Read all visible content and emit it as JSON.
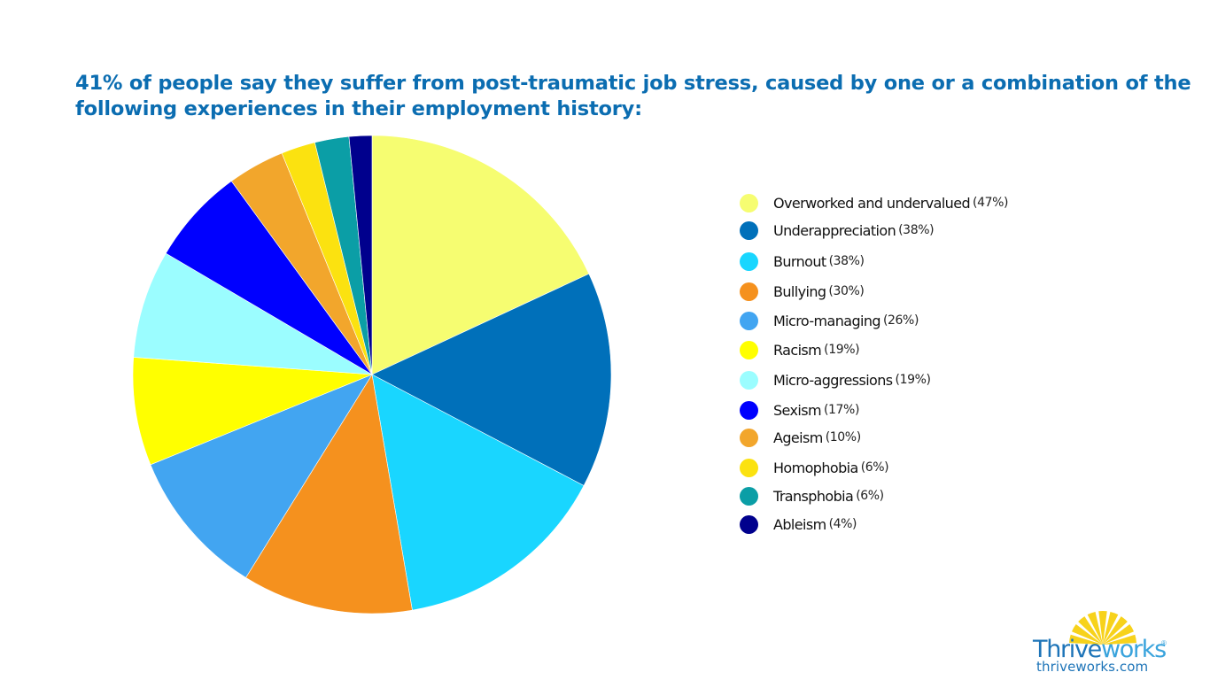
{
  "title": {
    "line1": "41% of people say they suffer from post-traumatic job stress, caused by one or a combination of the",
    "line2": "following experiences in their employment history:"
  },
  "logo": {
    "brand_part1": "Thrive",
    "brand_part2": "works",
    "registered": "®",
    "url": "thriveworks.com",
    "sun_color": "#f7d21b",
    "icon": "sunburst-icon"
  },
  "chart_data": {
    "type": "pie",
    "title": "41% of people say they suffer from post-traumatic job stress, caused by one or a combination of the following experiences in their employment history:",
    "categories": [
      "Overworked and undervalued",
      "Underappreciation",
      "Burnout",
      "Bullying",
      "Micro-managing",
      "Racism",
      "Micro-aggressions",
      "Sexism",
      "Ageism",
      "Homophobia",
      "Transphobia",
      "Ableism"
    ],
    "values": [
      47,
      38,
      38,
      30,
      26,
      19,
      19,
      17,
      10,
      6,
      6,
      4
    ],
    "labels": [
      "(47%)",
      "(38%)",
      "(38%)",
      "(30%)",
      "(26%)",
      "(19%)",
      "(19%)",
      "(17%)",
      "(10%)",
      "(6%)",
      "(6%)",
      "(4%)"
    ],
    "colors": [
      "#f6fd71",
      "#0070ba",
      "#19d6ff",
      "#f5911e",
      "#42a5f1",
      "#ffff00",
      "#9bfdff",
      "#0000ff",
      "#f2a62c",
      "#fbe210",
      "#0b9ea6",
      "#00008d"
    ],
    "start_angle_deg": 0,
    "direction": "clockwise",
    "center": [
      420,
      423
    ],
    "radius": 270,
    "legend_position": "right",
    "xlabel": "",
    "ylabel": ""
  }
}
